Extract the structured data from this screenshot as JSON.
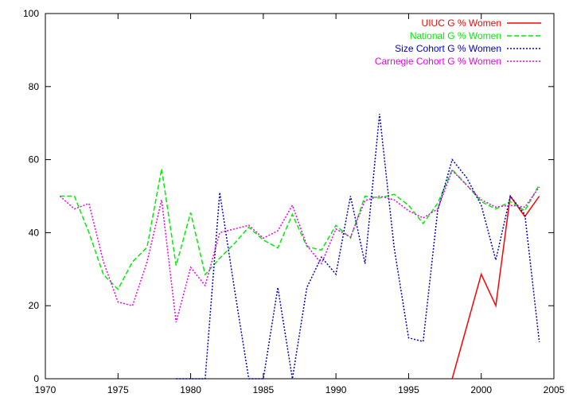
{
  "chart_data": {
    "type": "line",
    "title": "",
    "xlabel": "",
    "ylabel": "",
    "xlim": [
      1970,
      2005
    ],
    "ylim": [
      0,
      100
    ],
    "xticks": [
      1970,
      1975,
      1980,
      1985,
      1990,
      1995,
      2000,
      2005
    ],
    "yticks": [
      0,
      20,
      40,
      60,
      80,
      100
    ],
    "grid": false,
    "legend_position": "top-right",
    "series": [
      {
        "name": "UIUC G % Women",
        "color": "#ff0000",
        "dash": "solid",
        "x": [
          1998,
          2000,
          2001,
          2002,
          2003,
          2004
        ],
        "y": [
          0,
          28.6,
          20,
          50,
          44.4,
          50
        ]
      },
      {
        "name": "National G % Women",
        "color": "#00ee00",
        "dash": "dashed",
        "x": [
          1971,
          1972,
          1973,
          1974,
          1975,
          1976,
          1977,
          1978,
          1979,
          1980,
          1981,
          1982,
          1983,
          1984,
          1985,
          1986,
          1987,
          1988,
          1989,
          1990,
          1991,
          1992,
          1993,
          1994,
          1995,
          1996,
          1997,
          1998,
          1999,
          2000,
          2001,
          2002,
          2003,
          2004
        ],
        "y": [
          50,
          50,
          40,
          28.5,
          24.5,
          32,
          36,
          57.5,
          31,
          45.5,
          28.5,
          33,
          37,
          41.5,
          38,
          35.8,
          45,
          36.2,
          35.2,
          42,
          38.5,
          50,
          49.5,
          50.5,
          47.5,
          42.5,
          48,
          57.3,
          53,
          48.5,
          46.5,
          48.5,
          46,
          53.2
        ]
      },
      {
        "name": "Size Cohort G % Women",
        "color": "#0000cc",
        "dash": "dotted",
        "x": [
          1979,
          1980,
          1981,
          1982,
          1983,
          1984,
          1985,
          1986,
          1987,
          1988,
          1989,
          1990,
          1991,
          1992,
          1993,
          1994,
          1995,
          1996,
          1997,
          1998,
          1999,
          2000,
          2001,
          2002,
          2003,
          2004
        ],
        "y": [
          0,
          0,
          0,
          51,
          25,
          0,
          0,
          25,
          0,
          25,
          33.3,
          28.6,
          50,
          31.5,
          72.5,
          36,
          11.2,
          10.2,
          46,
          60,
          55,
          47.5,
          32.5,
          50,
          45,
          10
        ]
      },
      {
        "name": "Carnegie Cohort G % Women",
        "color": "#ee00ee",
        "dash": "dotted",
        "x": [
          1971,
          1972,
          1973,
          1974,
          1975,
          1976,
          1977,
          1978,
          1979,
          1980,
          1981,
          1982,
          1983,
          1984,
          1985,
          1986,
          1987,
          1988,
          1989,
          1990,
          1991,
          1992,
          1993,
          1994,
          1995,
          1996,
          1997,
          1998,
          1999,
          2000,
          2001,
          2002,
          2003,
          2004
        ],
        "y": [
          50,
          46.5,
          48,
          32,
          21,
          20,
          32,
          49,
          15.5,
          30.5,
          25.5,
          40,
          41,
          42,
          38.5,
          40.5,
          47.5,
          36.5,
          31.5,
          41,
          38.8,
          48.8,
          50,
          49,
          46,
          44,
          46.5,
          57,
          53,
          49,
          47,
          47.5,
          47,
          52.5
        ]
      }
    ]
  }
}
